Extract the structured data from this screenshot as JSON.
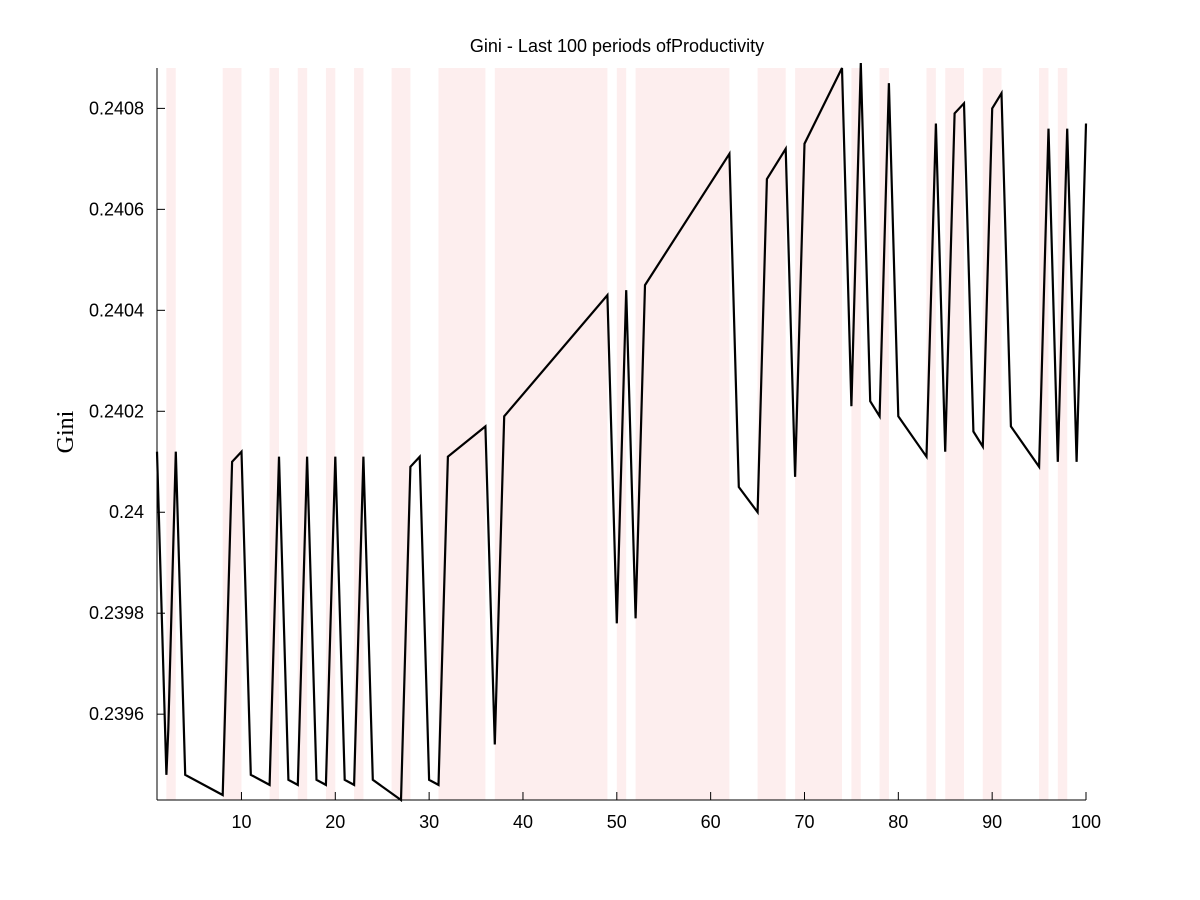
{
  "chart_data": {
    "type": "line",
    "title": "Gini - Last 100 periods ofProductivity",
    "xlabel": "",
    "ylabel": "Gini",
    "xlim": [
      1,
      100
    ],
    "ylim": [
      0.23943,
      0.24088
    ],
    "xticks": [
      10,
      20,
      30,
      40,
      50,
      60,
      70,
      80,
      90,
      100
    ],
    "xtick_labels": [
      "10",
      "20",
      "30",
      "40",
      "50",
      "60",
      "70",
      "80",
      "90",
      "100"
    ],
    "yticks": [
      0.2396,
      0.2398,
      0.24,
      0.2402,
      0.2404,
      0.2406,
      0.2408
    ],
    "ytick_labels": [
      "0.2396",
      "0.2398",
      "0.24",
      "0.2402",
      "0.2404",
      "0.2406",
      "0.2408"
    ],
    "grid": false,
    "band_color": "#fdeeee",
    "line_color": "#000000",
    "shaded_periods": [
      [
        2,
        3
      ],
      [
        8,
        10
      ],
      [
        13,
        14
      ],
      [
        16,
        17
      ],
      [
        19,
        20
      ],
      [
        22,
        23
      ],
      [
        26,
        28
      ],
      [
        31,
        36
      ],
      [
        37,
        49
      ],
      [
        50,
        51
      ],
      [
        52,
        62
      ],
      [
        65,
        68
      ],
      [
        69,
        74
      ],
      [
        75,
        76
      ],
      [
        78,
        79
      ],
      [
        83,
        84
      ],
      [
        85,
        87
      ],
      [
        89,
        91
      ],
      [
        95,
        96
      ],
      [
        97,
        98
      ]
    ],
    "series": [
      {
        "x": [
          1,
          2,
          2.2,
          3,
          4,
          8,
          9,
          10,
          11,
          13,
          14,
          15,
          16,
          17,
          18,
          19,
          20,
          21,
          22,
          23,
          24,
          27,
          28,
          29,
          30,
          31,
          32,
          36,
          37,
          38,
          49,
          50,
          51,
          52,
          53,
          62,
          63,
          65,
          66,
          68,
          69,
          70,
          74,
          75,
          76,
          77,
          78,
          79,
          80,
          83,
          84,
          85,
          86,
          87,
          88,
          89,
          90,
          91,
          92,
          95,
          96,
          97,
          98,
          99,
          100
        ],
        "y": [
          0.24012,
          0.23948,
          0.23957,
          0.24012,
          0.23948,
          0.23944,
          0.2401,
          0.24012,
          0.23948,
          0.23946,
          0.24011,
          0.23947,
          0.23946,
          0.24011,
          0.23947,
          0.23946,
          0.24011,
          0.23947,
          0.23946,
          0.24011,
          0.23947,
          0.23943,
          0.24009,
          0.24011,
          0.23947,
          0.23946,
          0.24011,
          0.24017,
          0.23954,
          0.24019,
          0.24043,
          0.23978,
          0.24044,
          0.23979,
          0.24045,
          0.24071,
          0.24005,
          0.24,
          0.24066,
          0.24072,
          0.24007,
          0.24073,
          0.24088,
          0.24021,
          0.24089,
          0.24022,
          0.24019,
          0.24085,
          0.24019,
          0.24011,
          0.24077,
          0.24012,
          0.24079,
          0.24081,
          0.24016,
          0.24013,
          0.2408,
          0.24083,
          0.24017,
          0.24009,
          0.24076,
          0.2401,
          0.24076,
          0.2401,
          0.24077
        ]
      }
    ]
  }
}
